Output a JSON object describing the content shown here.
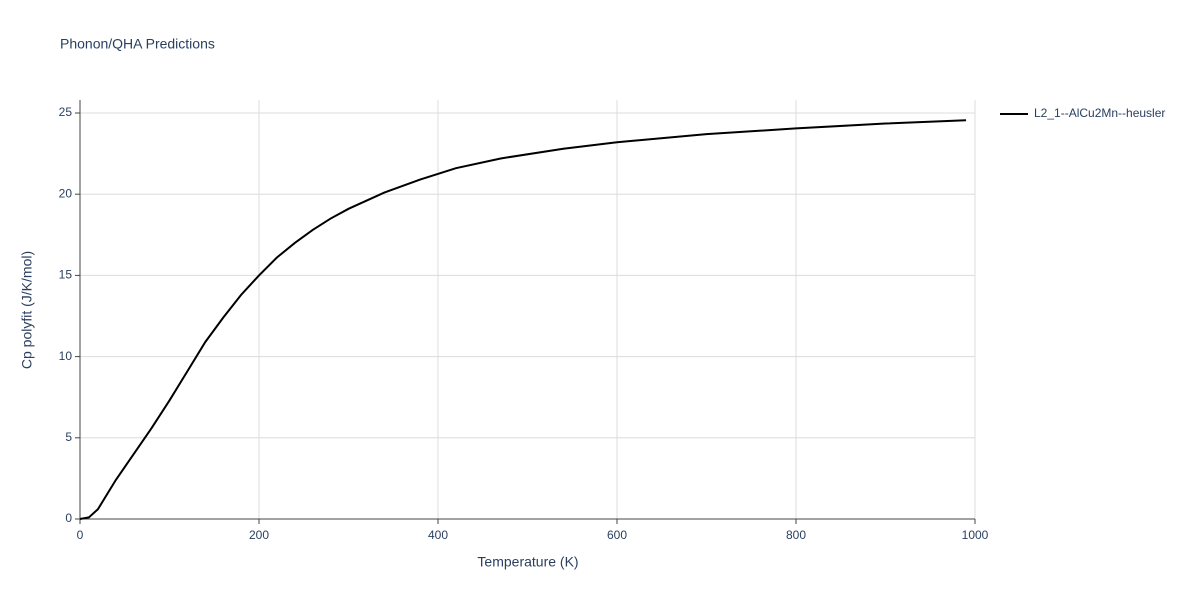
{
  "chart_data": {
    "type": "line",
    "title": "Phonon/QHA Predictions",
    "x_label": "Temperature (K)",
    "y_label": "Cp polyfit (J/K/mol)",
    "x": [
      0,
      10,
      20,
      30,
      40,
      60,
      80,
      100,
      120,
      140,
      160,
      180,
      200,
      220,
      240,
      260,
      280,
      300,
      340,
      380,
      420,
      470,
      540,
      600,
      700,
      800,
      900,
      990
    ],
    "series": [
      {
        "name": "L2_1--AlCu2Mn--heusler",
        "color": "#000000",
        "values": [
          0,
          0.1,
          0.6,
          1.5,
          2.4,
          4.0,
          5.6,
          7.3,
          9.1,
          10.9,
          12.4,
          13.8,
          15.0,
          16.1,
          17.0,
          17.8,
          18.5,
          19.1,
          20.1,
          20.9,
          21.6,
          22.2,
          22.8,
          23.2,
          23.7,
          24.05,
          24.35,
          24.55
        ]
      }
    ],
    "xlim": [
      0,
      1000
    ],
    "ylim": [
      0,
      25.8
    ],
    "xticks": [
      0,
      200,
      400,
      600,
      800,
      1000
    ],
    "yticks": [
      0,
      5,
      10,
      15,
      20,
      25
    ],
    "grid": true,
    "legend": "right"
  }
}
